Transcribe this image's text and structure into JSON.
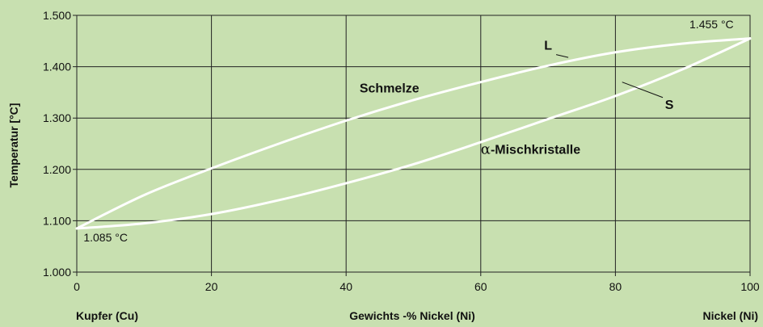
{
  "chart_data": {
    "type": "line",
    "ylabel": "Temperatur [°C]",
    "xlabel": "Gewichts -% Nickel (Ni)",
    "x_left_label": "Kupfer (Cu)",
    "x_right_label": "Nickel (Ni)",
    "xlim": [
      0,
      100
    ],
    "ylim": [
      1000,
      1500
    ],
    "x_ticks": [
      0,
      20,
      40,
      60,
      80,
      100
    ],
    "x_tick_labels": [
      "0",
      "20",
      "40",
      "60",
      "80",
      "100"
    ],
    "y_ticks": [
      1000,
      1100,
      1200,
      1300,
      1400,
      1500
    ],
    "y_tick_labels": [
      "1.000",
      "1.100",
      "1.200",
      "1.300",
      "1.400",
      "1.500"
    ],
    "grid": true,
    "colors": {
      "background": "#c8e0b0",
      "curve": "#ffffff",
      "grid": "#222222"
    },
    "series": [
      {
        "name": "L",
        "x": [
          0,
          10,
          20,
          30,
          40,
          50,
          60,
          70,
          80,
          90,
          100
        ],
        "y": [
          1085,
          1150,
          1202,
          1250,
          1295,
          1335,
          1370,
          1402,
          1428,
          1445,
          1455
        ]
      },
      {
        "name": "S",
        "x": [
          0,
          10,
          20,
          30,
          40,
          50,
          60,
          70,
          80,
          90,
          100
        ],
        "y": [
          1085,
          1095,
          1113,
          1140,
          1173,
          1210,
          1253,
          1298,
          1343,
          1395,
          1455
        ]
      }
    ],
    "annotations": [
      {
        "text": "1.085 °C",
        "x": 1,
        "y": 1060
      },
      {
        "text": "1.455 °C",
        "x": 91,
        "y": 1475
      },
      {
        "text": "Schmelze",
        "x": 42,
        "y": 1350
      },
      {
        "text": "-Mischkristalle",
        "alpha": "α",
        "x": 60,
        "y": 1230
      }
    ]
  }
}
